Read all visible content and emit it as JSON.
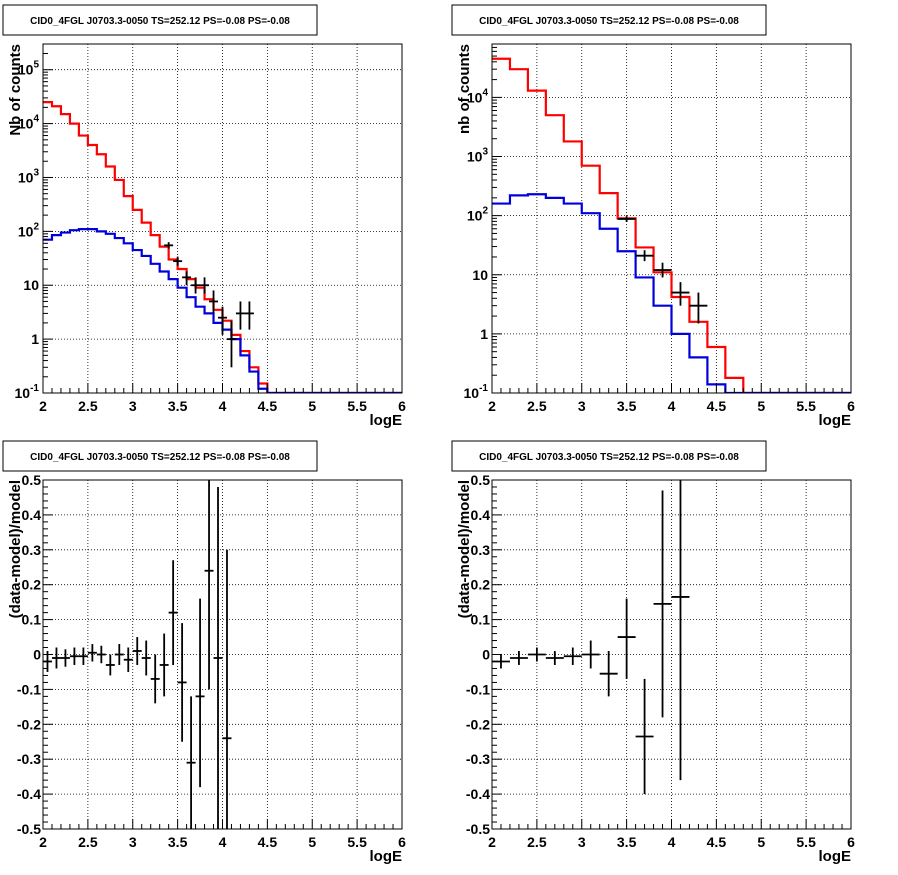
{
  "chart_data": [
    {
      "type": "line",
      "title": "CID0_4FGL J0703.3-0050 TS=252.12 PS=-0.08 PS=-0.08",
      "xlabel": "logE",
      "ylabel": "Nb of counts",
      "xlim": [
        2,
        6
      ],
      "ylim": [
        0.1,
        300000
      ],
      "yscale": "log",
      "grid": true,
      "x_ticks": [
        "2",
        "2.5",
        "3",
        "3.5",
        "4",
        "4.5",
        "5",
        "5.5",
        "6"
      ],
      "y_ticks": [
        {
          "value": 0.1,
          "base": "10",
          "exp": "-1",
          "label": ""
        },
        {
          "value": 1,
          "base": "",
          "exp": "",
          "label": "1"
        },
        {
          "value": 10,
          "base": "",
          "exp": "",
          "label": "10"
        },
        {
          "value": 100,
          "base": "10",
          "exp": "2",
          "label": ""
        },
        {
          "value": 1000,
          "base": "10",
          "exp": "3",
          "label": ""
        },
        {
          "value": 10000,
          "base": "10",
          "exp": "4",
          "label": ""
        },
        {
          "value": 100000,
          "base": "10",
          "exp": "5",
          "label": ""
        }
      ],
      "bin_edges": [
        2.0,
        2.1,
        2.2,
        2.3,
        2.4,
        2.5,
        2.6,
        2.7,
        2.8,
        2.9,
        3.0,
        3.1,
        3.2,
        3.3,
        3.4,
        3.5,
        3.6,
        3.7,
        3.8,
        3.9,
        4.0,
        4.1,
        4.2,
        4.3,
        4.4,
        4.5,
        4.6,
        4.7,
        4.8,
        4.9,
        5.0,
        5.1,
        5.2,
        5.3,
        5.4,
        5.5,
        5.6,
        5.7,
        5.8,
        5.9,
        6.0
      ],
      "series": [
        {
          "color": "#ff0000",
          "style": "step",
          "values": [
            25000,
            21000,
            15000,
            10000,
            6000,
            4000,
            2700,
            1600,
            900,
            450,
            250,
            145,
            85,
            52,
            30,
            20,
            13,
            9,
            5.5,
            3.5,
            2.2,
            1.2,
            0.6,
            0.3,
            0.15,
            0.1,
            0.1,
            0.1,
            0.1,
            0.1,
            0.1,
            0.1,
            0.1,
            0.1,
            0.1,
            0.1,
            0.1,
            0.1,
            0.1,
            0.1
          ]
        },
        {
          "color": "#0000dd",
          "style": "step",
          "values": [
            70,
            85,
            95,
            105,
            110,
            110,
            100,
            90,
            75,
            60,
            45,
            35,
            25,
            18,
            13,
            9,
            6,
            4,
            3,
            2,
            1.5,
            1,
            0.5,
            0.25,
            0.12,
            0.1,
            0.1,
            0.1,
            0.1,
            0.1,
            0.1,
            0.1,
            0.1,
            0.1,
            0.1,
            0.1,
            0.1,
            0.1,
            0.1,
            0.1
          ]
        },
        {
          "color": "#000000",
          "style": "points",
          "points": [
            {
              "x": 3.4,
              "y": 55,
              "ylo": 48,
              "yhi": 63
            },
            {
              "x": 3.5,
              "y": 28,
              "ylo": 23,
              "yhi": 34
            },
            {
              "x": 3.6,
              "y": 14,
              "ylo": 10,
              "yhi": 18
            },
            {
              "x": 3.7,
              "y": 10,
              "ylo": 7,
              "yhi": 14
            },
            {
              "x": 3.8,
              "y": 10,
              "ylo": 7,
              "yhi": 14
            },
            {
              "x": 3.9,
              "y": 5,
              "ylo": 3,
              "yhi": 8
            },
            {
              "x": 4.0,
              "y": 2.5,
              "ylo": 1.2,
              "yhi": 4
            },
            {
              "x": 4.1,
              "y": 1,
              "ylo": 0.3,
              "yhi": 2.2
            },
            {
              "x": 4.2,
              "y": 3,
              "ylo": 1.5,
              "yhi": 5
            },
            {
              "x": 4.3,
              "y": 3,
              "ylo": 1.5,
              "yhi": 5
            }
          ]
        }
      ]
    },
    {
      "type": "line",
      "title": "CID0_4FGL J0703.3-0050 TS=252.12 PS=-0.08 PS=-0.08",
      "xlabel": "logE",
      "ylabel": "nb of counts",
      "xlim": [
        2,
        6
      ],
      "ylim": [
        0.1,
        80000
      ],
      "yscale": "log",
      "grid": true,
      "x_ticks": [
        "2",
        "2.5",
        "3",
        "3.5",
        "4",
        "4.5",
        "5",
        "5.5",
        "6"
      ],
      "y_ticks": [
        {
          "value": 0.1,
          "base": "10",
          "exp": "-1",
          "label": ""
        },
        {
          "value": 1,
          "base": "",
          "exp": "",
          "label": "1"
        },
        {
          "value": 10,
          "base": "",
          "exp": "",
          "label": "10"
        },
        {
          "value": 100,
          "base": "10",
          "exp": "2",
          "label": ""
        },
        {
          "value": 1000,
          "base": "10",
          "exp": "3",
          "label": ""
        },
        {
          "value": 10000,
          "base": "10",
          "exp": "4",
          "label": ""
        }
      ],
      "bin_edges": [
        2.0,
        2.2,
        2.4,
        2.6,
        2.8,
        3.0,
        3.2,
        3.4,
        3.6,
        3.8,
        4.0,
        4.2,
        4.4,
        4.6,
        4.8,
        5.0,
        5.2,
        5.4,
        5.6,
        5.8,
        6.0
      ],
      "series": [
        {
          "color": "#ff0000",
          "style": "step",
          "values": [
            45000,
            30000,
            13000,
            5000,
            1800,
            700,
            240,
            90,
            29,
            11,
            4.2,
            1.6,
            0.6,
            0.18,
            0.1,
            0.1,
            0.1,
            0.1,
            0.1,
            0.1
          ]
        },
        {
          "color": "#0000dd",
          "style": "step",
          "values": [
            160,
            220,
            230,
            200,
            160,
            110,
            60,
            25,
            9,
            3,
            1,
            0.4,
            0.14,
            0.1,
            0.1,
            0.1,
            0.1,
            0.1,
            0.1,
            0.1
          ]
        },
        {
          "color": "#000000",
          "style": "points",
          "points": [
            {
              "x": 3.5,
              "y": 88,
              "ylo": 78,
              "yhi": 98
            },
            {
              "x": 3.7,
              "y": 21,
              "ylo": 17,
              "yhi": 26
            },
            {
              "x": 3.9,
              "y": 12,
              "ylo": 9,
              "yhi": 16
            },
            {
              "x": 4.1,
              "y": 5,
              "ylo": 3,
              "yhi": 7.5
            },
            {
              "x": 4.3,
              "y": 3,
              "ylo": 1.5,
              "yhi": 5
            }
          ]
        }
      ]
    },
    {
      "type": "scatter",
      "title": "CID0_4FGL J0703.3-0050 TS=252.12 PS=-0.08 PS=-0.08",
      "xlabel": "logE",
      "ylabel": "(data-model)/model",
      "xlim": [
        2,
        6
      ],
      "ylim": [
        -0.5,
        0.5
      ],
      "yscale": "linear",
      "grid": true,
      "x_ticks": [
        "2",
        "2.5",
        "3",
        "3.5",
        "4",
        "4.5",
        "5",
        "5.5",
        "6"
      ],
      "y_ticks": [
        "-0.5",
        "-0.4",
        "-0.3",
        "-0.2",
        "-0.1",
        "0",
        "0.1",
        "0.2",
        "0.3",
        "0.4",
        "0.5"
      ],
      "bin_width": 0.1,
      "points": [
        {
          "x": 2.05,
          "y": -0.02,
          "ylo": -0.05,
          "yhi": 0.01
        },
        {
          "x": 2.15,
          "y": -0.01,
          "ylo": -0.04,
          "yhi": 0.02
        },
        {
          "x": 2.25,
          "y": -0.01,
          "ylo": -0.035,
          "yhi": 0.015
        },
        {
          "x": 2.35,
          "y": -0.005,
          "ylo": -0.03,
          "yhi": 0.02
        },
        {
          "x": 2.45,
          "y": -0.005,
          "ylo": -0.03,
          "yhi": 0.02
        },
        {
          "x": 2.55,
          "y": 0.005,
          "ylo": -0.02,
          "yhi": 0.03
        },
        {
          "x": 2.65,
          "y": 0.0,
          "ylo": -0.025,
          "yhi": 0.025
        },
        {
          "x": 2.75,
          "y": -0.03,
          "ylo": -0.06,
          "yhi": 0.0
        },
        {
          "x": 2.85,
          "y": 0.0,
          "ylo": -0.03,
          "yhi": 0.03
        },
        {
          "x": 2.95,
          "y": -0.015,
          "ylo": -0.05,
          "yhi": 0.02
        },
        {
          "x": 3.05,
          "y": 0.01,
          "ylo": -0.03,
          "yhi": 0.05
        },
        {
          "x": 3.15,
          "y": -0.01,
          "ylo": -0.06,
          "yhi": 0.04
        },
        {
          "x": 3.25,
          "y": -0.07,
          "ylo": -0.14,
          "yhi": 0.0
        },
        {
          "x": 3.35,
          "y": -0.03,
          "ylo": -0.12,
          "yhi": 0.06
        },
        {
          "x": 3.45,
          "y": 0.12,
          "ylo": -0.03,
          "yhi": 0.27
        },
        {
          "x": 3.55,
          "y": -0.08,
          "ylo": -0.25,
          "yhi": 0.09
        },
        {
          "x": 3.65,
          "y": -0.31,
          "ylo": -0.5,
          "yhi": -0.12
        },
        {
          "x": 3.75,
          "y": -0.12,
          "ylo": -0.38,
          "yhi": 0.16
        },
        {
          "x": 3.85,
          "y": 0.24,
          "ylo": -0.1,
          "yhi": 0.5
        },
        {
          "x": 3.95,
          "y": -0.01,
          "ylo": -0.5,
          "yhi": 0.48
        },
        {
          "x": 4.05,
          "y": -0.24,
          "ylo": -0.5,
          "yhi": 0.3
        }
      ]
    },
    {
      "type": "scatter",
      "title": "CID0_4FGL J0703.3-0050 TS=252.12 PS=-0.08 PS=-0.08",
      "xlabel": "logE",
      "ylabel": "(data-model)/model",
      "xlim": [
        2,
        6
      ],
      "ylim": [
        -0.5,
        0.5
      ],
      "yscale": "linear",
      "grid": true,
      "x_ticks": [
        "2",
        "2.5",
        "3",
        "3.5",
        "4",
        "4.5",
        "5",
        "5.5",
        "6"
      ],
      "y_ticks": [
        "-0.5",
        "-0.4",
        "-0.3",
        "-0.2",
        "-0.1",
        "0",
        "0.1",
        "0.2",
        "0.3",
        "0.4",
        "0.5"
      ],
      "bin_width": 0.2,
      "points": [
        {
          "x": 2.1,
          "y": -0.02,
          "ylo": -0.04,
          "yhi": 0.0
        },
        {
          "x": 2.3,
          "y": -0.01,
          "ylo": -0.03,
          "yhi": 0.01
        },
        {
          "x": 2.5,
          "y": 0.0,
          "ylo": -0.02,
          "yhi": 0.02
        },
        {
          "x": 2.7,
          "y": -0.01,
          "ylo": -0.03,
          "yhi": 0.01
        },
        {
          "x": 2.9,
          "y": -0.005,
          "ylo": -0.03,
          "yhi": 0.02
        },
        {
          "x": 3.1,
          "y": 0.0,
          "ylo": -0.04,
          "yhi": 0.04
        },
        {
          "x": 3.3,
          "y": -0.055,
          "ylo": -0.12,
          "yhi": 0.01
        },
        {
          "x": 3.5,
          "y": 0.05,
          "ylo": -0.07,
          "yhi": 0.16
        },
        {
          "x": 3.7,
          "y": -0.235,
          "ylo": -0.4,
          "yhi": -0.07
        },
        {
          "x": 3.9,
          "y": 0.145,
          "ylo": -0.18,
          "yhi": 0.47
        },
        {
          "x": 4.1,
          "y": 0.165,
          "ylo": -0.36,
          "yhi": 0.5
        }
      ]
    }
  ]
}
